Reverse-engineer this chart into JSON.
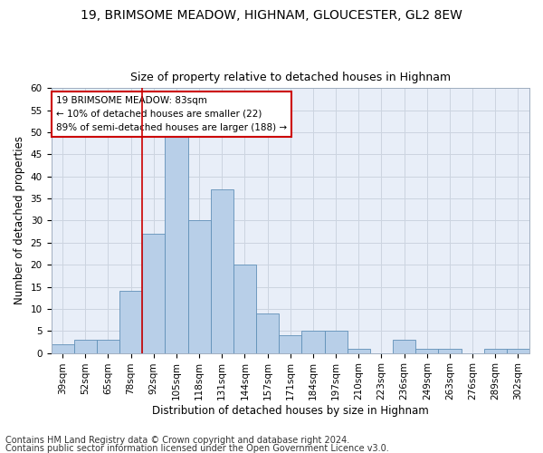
{
  "title": "19, BRIMSOME MEADOW, HIGHNAM, GLOUCESTER, GL2 8EW",
  "subtitle": "Size of property relative to detached houses in Highnam",
  "xlabel": "Distribution of detached houses by size in Highnam",
  "ylabel": "Number of detached properties",
  "categories": [
    "39sqm",
    "52sqm",
    "65sqm",
    "78sqm",
    "92sqm",
    "105sqm",
    "118sqm",
    "131sqm",
    "144sqm",
    "157sqm",
    "171sqm",
    "184sqm",
    "197sqm",
    "210sqm",
    "223sqm",
    "236sqm",
    "249sqm",
    "263sqm",
    "276sqm",
    "289sqm",
    "302sqm"
  ],
  "values": [
    2,
    3,
    3,
    14,
    27,
    49,
    30,
    37,
    20,
    9,
    4,
    5,
    5,
    1,
    0,
    3,
    1,
    1,
    0,
    1,
    1
  ],
  "bar_color": "#b8cfe8",
  "bar_edge_color": "#6090b8",
  "bar_width": 1.0,
  "vline_color": "#cc0000",
  "vline_x": 3.5,
  "annotation_text": "19 BRIMSOME MEADOW: 83sqm\n← 10% of detached houses are smaller (22)\n89% of semi-detached houses are larger (188) →",
  "annotation_box_color": "#ffffff",
  "annotation_box_edge_color": "#cc0000",
  "ylim": [
    0,
    60
  ],
  "yticks": [
    0,
    5,
    10,
    15,
    20,
    25,
    30,
    35,
    40,
    45,
    50,
    55,
    60
  ],
  "grid_color": "#ccd4e0",
  "background_color": "#e8eef8",
  "footer_line1": "Contains HM Land Registry data © Crown copyright and database right 2024.",
  "footer_line2": "Contains public sector information licensed under the Open Government Licence v3.0.",
  "title_fontsize": 10,
  "subtitle_fontsize": 9,
  "axis_label_fontsize": 8.5,
  "tick_fontsize": 7.5,
  "annotation_fontsize": 7.5,
  "footer_fontsize": 7
}
